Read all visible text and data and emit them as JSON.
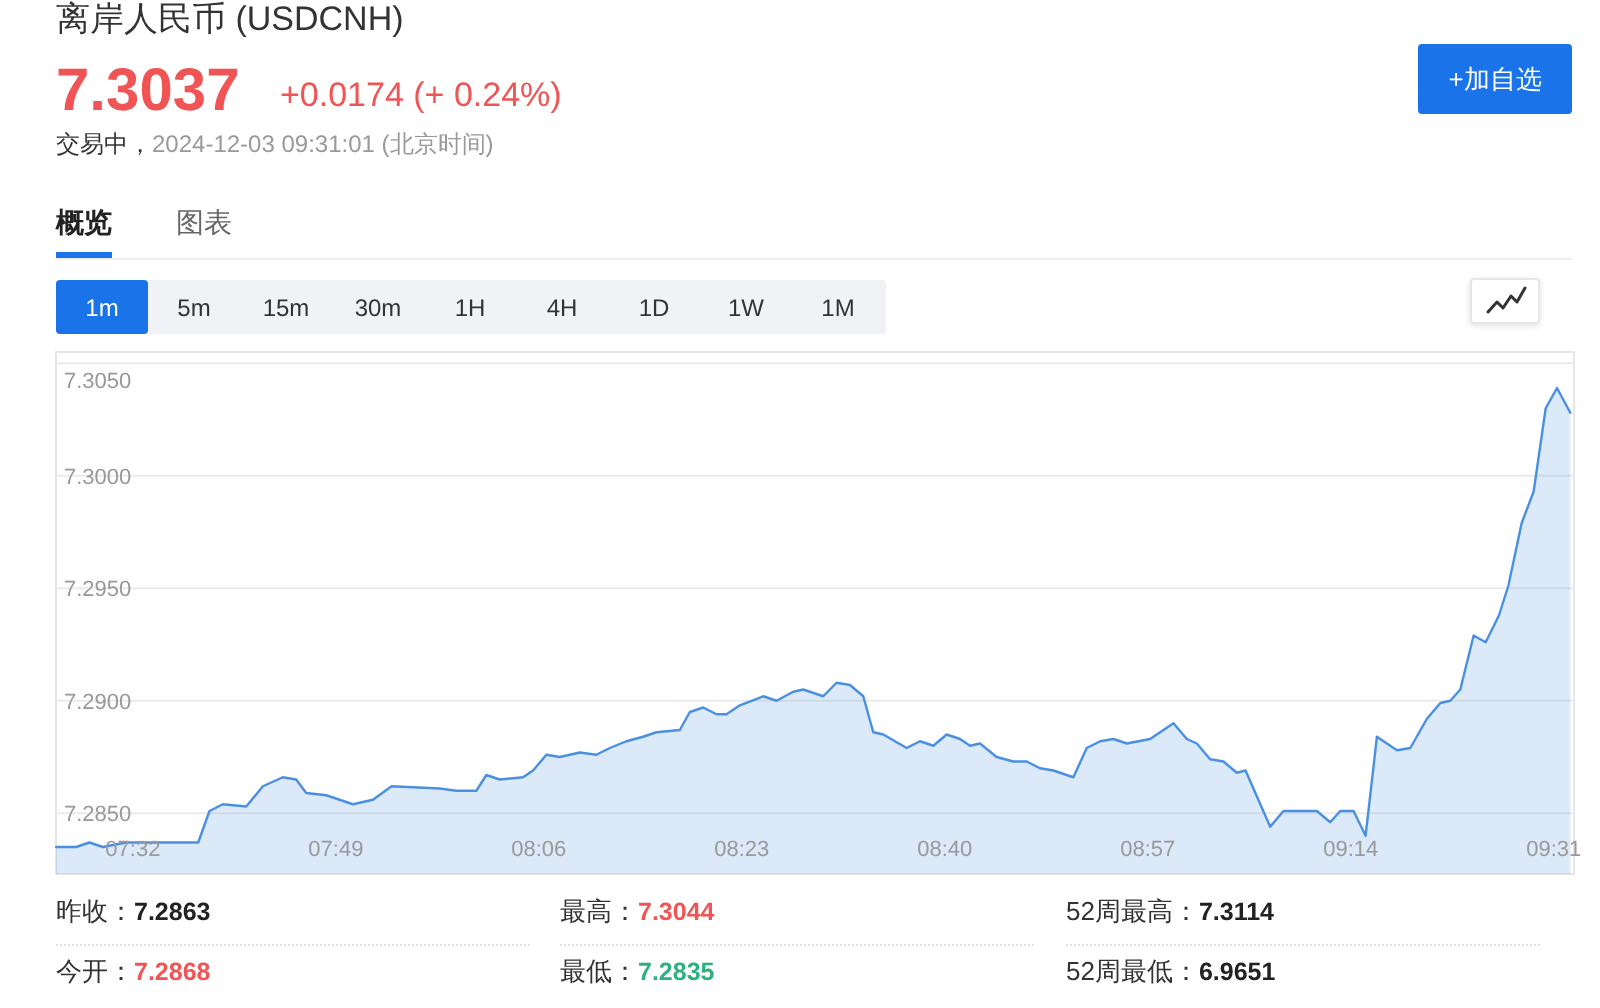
{
  "chart_data": {
    "type": "area",
    "title": "离岸人民币 (USDCNH)",
    "annotations": [
      "7.3037",
      "+0.0174 (+ 0.24%)",
      "交易中，",
      "2024-12-03 09:31:01 (北京时间)",
      "+加自选",
      "概览",
      "图表",
      "1m",
      "5m",
      "15m",
      "30m",
      "1H",
      "4H",
      "1D",
      "1W",
      "1M",
      "昨收：",
      "7.2863",
      "最高：",
      "7.3044",
      "52周最高：",
      "7.3114",
      "今开：",
      "7.2868",
      "最低：",
      "7.2835",
      "52周最低：",
      "6.9651"
    ],
    "x": [
      7.4261,
      7.454,
      7.4727,
      7.4913,
      7.5239,
      7.5705,
      7.6245,
      7.6403,
      7.6589,
      7.6915,
      7.7148,
      7.7427,
      7.7613,
      7.7753,
      7.8032,
      7.8405,
      7.8684,
      7.8945,
      7.9616,
      7.9848,
      8.0128,
      8.0267,
      8.0454,
      8.078,
      8.0919,
      8.1105,
      8.1292,
      8.1571,
      8.1804,
      8.199,
      8.2223,
      8.2456,
      8.2642,
      8.2968,
      8.3108,
      8.3294,
      8.348,
      8.362,
      8.3806,
      8.4132,
      8.4318,
      8.4551,
      8.4691,
      8.497,
      8.5156,
      8.5343,
      8.5529,
      8.5668,
      8.5808,
      8.6134,
      8.632,
      8.6507,
      8.6693,
      8.6879,
      8.7019,
      8.7158,
      8.7391,
      8.7624,
      8.781,
      8.7996,
      8.8183,
      8.8462,
      8.8648,
      8.8835,
      8.9021,
      8.9207,
      8.9533,
      8.9859,
      9.0045,
      9.0185,
      9.0371,
      9.0557,
      9.0743,
      9.0865,
      9.1209,
      9.1395,
      9.1861,
      9.2047,
      9.2187,
      9.2373,
      9.2541,
      9.2699,
      9.2978,
      9.3165,
      9.3397,
      9.3584,
      9.3723,
      9.3863,
      9.4049,
      9.4217,
      9.4403,
      9.4533,
      9.472,
      9.4887,
      9.5055,
      9.5213,
      9.5399
    ],
    "series": [
      {
        "color": "#4a90e2",
        "values": [
          7.2835,
          7.2835,
          7.2837,
          7.2835,
          7.2837,
          7.2837,
          7.2837,
          7.2851,
          7.2854,
          7.2853,
          7.2862,
          7.2866,
          7.2865,
          7.2859,
          7.2858,
          7.2854,
          7.2856,
          7.2862,
          7.2861,
          7.286,
          7.286,
          7.2867,
          7.2865,
          7.2866,
          7.2869,
          7.2876,
          7.2875,
          7.2877,
          7.2876,
          7.2879,
          7.2882,
          7.2884,
          7.2886,
          7.2887,
          7.2895,
          7.2897,
          7.2894,
          7.2894,
          7.2898,
          7.2902,
          7.29,
          7.2904,
          7.2905,
          7.2902,
          7.2908,
          7.2907,
          7.2902,
          7.2886,
          7.2885,
          7.2879,
          7.2882,
          7.288,
          7.2885,
          7.2883,
          7.288,
          7.2881,
          7.2875,
          7.2873,
          7.2873,
          7.287,
          7.2869,
          7.2866,
          7.2879,
          7.2882,
          7.2883,
          7.2881,
          7.2883,
          7.289,
          7.2883,
          7.2881,
          7.2874,
          7.2873,
          7.2868,
          7.2869,
          7.2844,
          7.2851,
          7.2851,
          7.2846,
          7.2851,
          7.2851,
          7.284,
          7.2884,
          7.2878,
          7.2879,
          7.2892,
          7.2899,
          7.29,
          7.2905,
          7.2929,
          7.2926,
          7.2938,
          7.2951,
          7.2979,
          7.2993,
          7.303,
          7.3039,
          7.3028
        ]
      }
    ],
    "xlim": [
      7.426,
      9.545
    ],
    "ylim": [
      7.2823,
      7.3055
    ],
    "xticks": [
      {
        "value": 7.5333,
        "label": "07:32"
      },
      {
        "value": 7.8167,
        "label": "07:49"
      },
      {
        "value": 8.1,
        "label": "08:06"
      },
      {
        "value": 8.3833,
        "label": "08:23"
      },
      {
        "value": 8.6667,
        "label": "08:40"
      },
      {
        "value": 8.95,
        "label": "08:57"
      },
      {
        "value": 9.2333,
        "label": "09:14"
      },
      {
        "value": 9.5167,
        "label": "09:31"
      }
    ],
    "yticks": [
      {
        "value": 7.285,
        "label": "7.2850"
      },
      {
        "value": 7.29,
        "label": "7.2900"
      },
      {
        "value": 7.295,
        "label": "7.2950"
      },
      {
        "value": 7.3,
        "label": "7.3000"
      },
      {
        "value": 7.305,
        "label": "7.3050"
      }
    ],
    "grid": "y"
  }
}
